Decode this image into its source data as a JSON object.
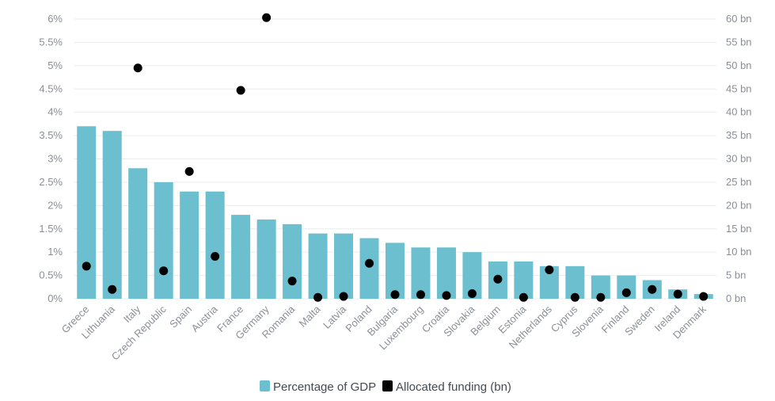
{
  "chart_data": {
    "type": "bar",
    "categories": [
      "Greece",
      "Lithuania",
      "Italy",
      "Czech Republic",
      "Spain",
      "Austria",
      "France",
      "Germany",
      "Romania",
      "Malta",
      "Latvia",
      "Poland",
      "Bulgaria",
      "Luxembourg",
      "Croatia",
      "Slovakia",
      "Belgium",
      "Estonia",
      "Netherlands",
      "Cyprus",
      "Slovenia",
      "Finland",
      "Sweden",
      "Ireland",
      "Denmark"
    ],
    "series": [
      {
        "name": "Percentage of GDP",
        "type": "bar",
        "axis": "left",
        "color": "#6bbfcf",
        "values": [
          3.7,
          3.6,
          2.8,
          2.5,
          2.3,
          2.3,
          1.8,
          1.7,
          1.6,
          1.4,
          1.4,
          1.3,
          1.2,
          1.1,
          1.1,
          1.0,
          0.8,
          0.8,
          0.7,
          0.7,
          0.5,
          0.5,
          0.4,
          0.2,
          0.1
        ]
      },
      {
        "name": "Allocated funding (bn)",
        "type": "scatter",
        "axis": "right",
        "color": "#000000",
        "values": [
          7.0,
          2.0,
          49.5,
          6.0,
          27.3,
          9.1,
          44.7,
          60.3,
          3.8,
          0.3,
          0.5,
          7.6,
          0.9,
          0.9,
          0.7,
          1.1,
          4.2,
          0.3,
          6.2,
          0.3,
          0.3,
          1.3,
          2.0,
          1.0,
          0.5
        ]
      }
    ],
    "left_axis": {
      "ylim": [
        0,
        6
      ],
      "ticks": [
        0,
        0.5,
        1,
        1.5,
        2,
        2.5,
        3,
        3.5,
        4,
        4.5,
        5,
        5.5,
        6
      ],
      "tick_labels": [
        "0%",
        "0.5%",
        "1%",
        "1.5%",
        "2%",
        "2.5%",
        "3%",
        "3.5%",
        "4%",
        "4.5%",
        "5%",
        "5.5%",
        "6%"
      ]
    },
    "right_axis": {
      "ylim": [
        0,
        60
      ],
      "ticks": [
        0,
        5,
        10,
        15,
        20,
        25,
        30,
        35,
        40,
        45,
        50,
        55,
        60
      ],
      "tick_labels": [
        "0 bn",
        "5 bn",
        "10 bn",
        "15 bn",
        "20 bn",
        "25 bn",
        "30 bn",
        "35 bn",
        "40 bn",
        "45 bn",
        "50 bn",
        "55 bn",
        "60 bn"
      ]
    },
    "grid": true,
    "legend_position": "bottom-center"
  },
  "legend": {
    "items": [
      {
        "label": "Percentage of GDP",
        "color": "#6bbfcf",
        "shape": "square"
      },
      {
        "label": "Allocated funding (bn)",
        "color": "#000000",
        "shape": "square"
      }
    ]
  }
}
